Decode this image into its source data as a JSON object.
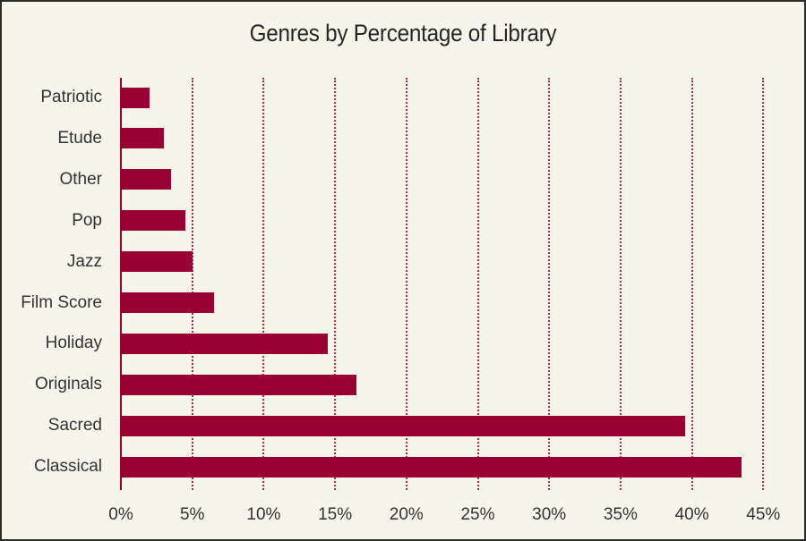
{
  "chart_data": {
    "type": "bar",
    "orientation": "horizontal",
    "title": "Genres by Percentage of Library",
    "xlabel": "",
    "ylabel": "",
    "categories": [
      "Patriotic",
      "Etude",
      "Other",
      "Pop",
      "Jazz",
      "Film Score",
      "Holiday",
      "Originals",
      "Sacred",
      "Classical"
    ],
    "values": [
      2.0,
      3.0,
      3.5,
      4.5,
      5.0,
      6.5,
      14.5,
      16.5,
      39.5,
      43.5
    ],
    "xlim": [
      0,
      45
    ],
    "x_ticks": [
      "0%",
      "5%",
      "10%",
      "15%",
      "20%",
      "25%",
      "30%",
      "35%",
      "40%",
      "45%"
    ],
    "x_tick_values": [
      0,
      5,
      10,
      15,
      20,
      25,
      30,
      35,
      40,
      45
    ],
    "grid": "vertical dotted",
    "legend": "none",
    "colors": {
      "bar": "#990033",
      "grid": "#b8234d",
      "background": "#f6f5ea",
      "border": "#2b2b2b"
    }
  }
}
